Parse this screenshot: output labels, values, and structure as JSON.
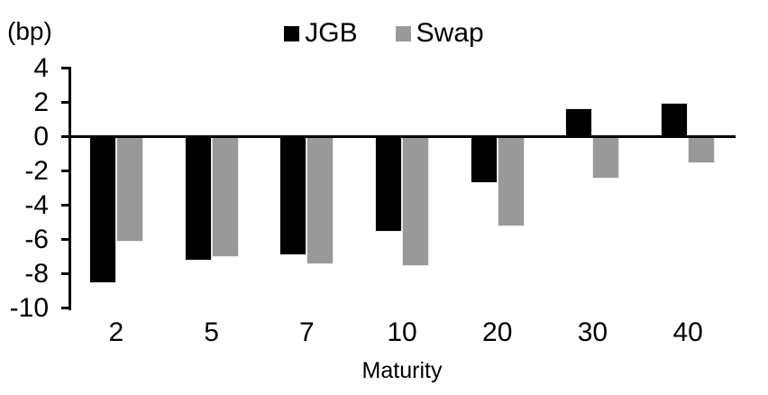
{
  "chart_data": {
    "type": "bar",
    "title": "",
    "y_unit_label": "(bp)",
    "xlabel": "Maturity",
    "ylabel": "",
    "categories": [
      "2",
      "5",
      "7",
      "10",
      "20",
      "30",
      "40"
    ],
    "series": [
      {
        "name": "JGB",
        "color": "#000000",
        "values": [
          -8.5,
          -7.2,
          -6.9,
          -5.5,
          -2.7,
          1.7,
          2.0
        ]
      },
      {
        "name": "Swap",
        "color": "#999999",
        "values": [
          -6.1,
          -7.0,
          -7.4,
          -7.5,
          -5.2,
          -2.4,
          -1.5
        ]
      }
    ],
    "ylim": [
      -10,
      4
    ],
    "yticks": [
      4,
      2,
      0,
      -2,
      -4,
      -6,
      -8,
      -10
    ],
    "grid": false,
    "legend_position": "top-center",
    "background": "#ffffff",
    "text_color": "#000000"
  }
}
